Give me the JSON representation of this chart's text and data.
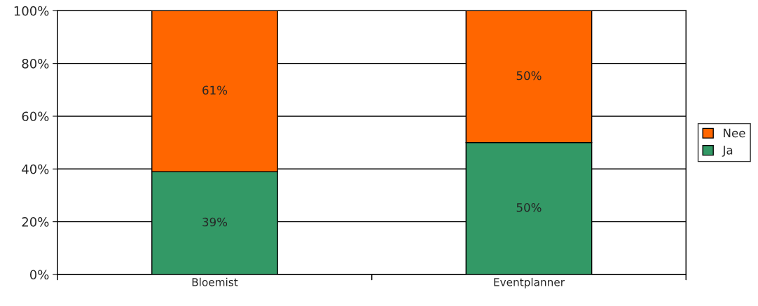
{
  "chart_data": {
    "type": "bar",
    "stacked": true,
    "categories": [
      "Bloemist",
      "Eventplanner"
    ],
    "series": [
      {
        "name": "Ja",
        "color": "#339966",
        "values": [
          39,
          50
        ],
        "value_labels": [
          "39%",
          "50%"
        ]
      },
      {
        "name": "Nee",
        "color": "#ff6600",
        "values": [
          61,
          50
        ],
        "value_labels": [
          "61%",
          "50%"
        ]
      }
    ],
    "ylim": [
      0,
      100
    ],
    "yticks": [
      {
        "value": 0,
        "label": "0%"
      },
      {
        "value": 20,
        "label": "20%"
      },
      {
        "value": 40,
        "label": "40%"
      },
      {
        "value": 60,
        "label": "60%"
      },
      {
        "value": 80,
        "label": "80%"
      },
      {
        "value": 100,
        "label": "100%"
      }
    ],
    "grid": "y",
    "legend": "right"
  }
}
